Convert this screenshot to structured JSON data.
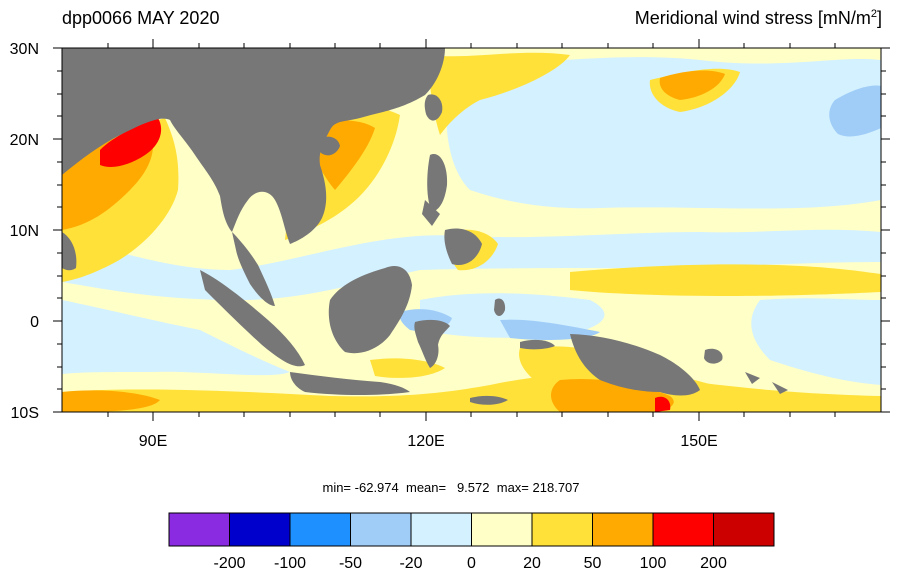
{
  "title_left": "dpp0066 MAY 2020",
  "title_right_main": "Meridional wind stress [mN/m",
  "title_right_sup": "2",
  "title_right_end": "]",
  "axes": {
    "lat_ticks": [
      "30N",
      "20N",
      "10N",
      "0",
      "10S"
    ],
    "lon_ticks": [
      "90E",
      "120E",
      "150E"
    ]
  },
  "stats": {
    "min_label": "min=",
    "min": "-62.974",
    "mean_label": "mean=",
    "mean": "9.572",
    "max_label": "max=",
    "max": "218.707"
  },
  "colorbar": {
    "labels": [
      "-200",
      "-100",
      "-50",
      "-20",
      "0",
      "20",
      "50",
      "100",
      "200"
    ],
    "colors": [
      "#8a2be2",
      "#0000cd",
      "#1e90ff",
      "#a0cdf8",
      "#d4f1ff",
      "#ffffc8",
      "#ffe13a",
      "#ffaa00",
      "#ff0000",
      "#cd0000"
    ]
  },
  "palette": {
    "land": "#777777",
    "ocean_base": "#ffffc8",
    "light_blue": "#d4f1ff",
    "mid_blue": "#a0cdf8",
    "yellow": "#ffe13a",
    "orange": "#ffaa00",
    "red": "#ff0000",
    "dark_red": "#cd0000"
  }
}
